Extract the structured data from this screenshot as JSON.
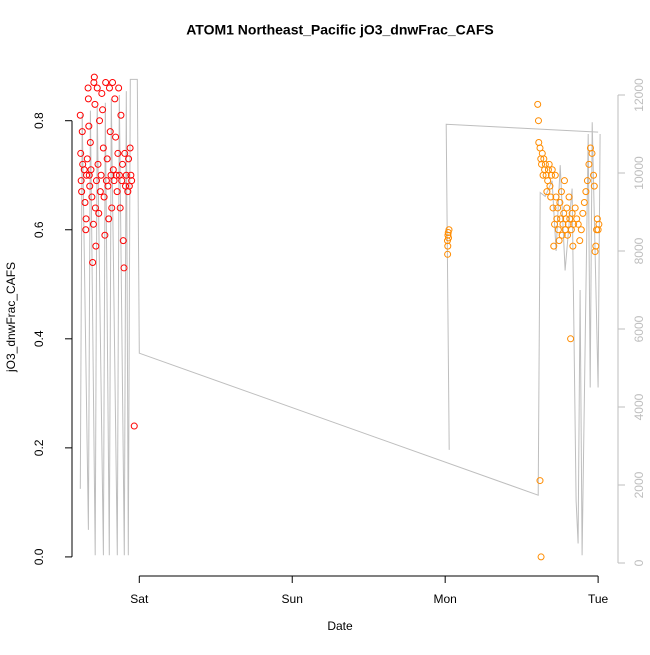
{
  "chart_data": {
    "type": "scatter",
    "title": "ATOM1 Northeast_Pacific jO3_dnwFrac_CAFS",
    "xlabel": "Date",
    "ylabel": "jO3_dnwFrac_CAFS",
    "xlim": [
      0.56,
      4.13
    ],
    "xticks": [
      {
        "value": 1,
        "label": "Sat"
      },
      {
        "value": 2,
        "label": "Sun"
      },
      {
        "value": 3,
        "label": "Mon"
      },
      {
        "value": 4,
        "label": "Tue"
      }
    ],
    "ylim": [
      -0.035,
      0.915
    ],
    "yticks": [
      {
        "value": 0,
        "label": "0.0"
      },
      0.2,
      0.4,
      0.6,
      0.8
    ],
    "y2lim": [
      -333,
      12949
    ],
    "y2ticks": [
      0,
      2000,
      4000,
      6000,
      8000,
      10000,
      12000
    ],
    "y2color": "#bebebe",
    "series": [
      {
        "color": "#ff0000",
        "type": "scatter",
        "x": [
          0.614,
          0.617,
          0.62,
          0.623,
          0.627,
          0.63,
          0.64,
          0.645,
          0.65,
          0.652,
          0.655,
          0.66,
          0.665,
          0.667,
          0.67,
          0.673,
          0.676,
          0.68,
          0.684,
          0.69,
          0.695,
          0.7,
          0.703,
          0.706,
          0.71,
          0.713,
          0.716,
          0.72,
          0.725,
          0.73,
          0.735,
          0.74,
          0.745,
          0.75,
          0.755,
          0.76,
          0.765,
          0.77,
          0.775,
          0.78,
          0.785,
          0.79,
          0.795,
          0.8,
          0.805,
          0.81,
          0.815,
          0.82,
          0.825,
          0.83,
          0.835,
          0.84,
          0.845,
          0.85,
          0.855,
          0.86,
          0.865,
          0.87,
          0.875,
          0.88,
          0.885,
          0.89,
          0.895,
          0.9,
          0.905,
          0.91,
          0.915,
          0.967,
          0.925,
          0.93,
          0.935,
          0.94,
          0.945,
          0.95
        ],
        "values": [
          0.81,
          0.74,
          0.69,
          0.67,
          0.78,
          0.72,
          0.71,
          0.65,
          0.6,
          0.62,
          0.7,
          0.73,
          0.86,
          0.84,
          0.79,
          0.7,
          0.68,
          0.76,
          0.71,
          0.66,
          0.54,
          0.61,
          0.87,
          0.88,
          0.83,
          0.64,
          0.57,
          0.69,
          0.86,
          0.72,
          0.63,
          0.8,
          0.67,
          0.7,
          0.85,
          0.82,
          0.75,
          0.66,
          0.59,
          0.87,
          0.69,
          0.73,
          0.68,
          0.62,
          0.86,
          0.78,
          0.7,
          0.64,
          0.87,
          0.71,
          0.69,
          0.84,
          0.77,
          0.7,
          0.67,
          0.74,
          0.86,
          0.7,
          0.64,
          0.81,
          0.69,
          0.72,
          0.58,
          0.53,
          0.74,
          0.68,
          0.7,
          0.24,
          0.67,
          0.73,
          0.68,
          0.75,
          0.7,
          0.69
        ]
      },
      {
        "color": "#ff8c00",
        "type": "scatter",
        "x": [
          3.015,
          3.018,
          3.02,
          3.022,
          3.025,
          3.017,
          3.016,
          3.605,
          3.61,
          3.612,
          3.62,
          3.627,
          3.62,
          3.625,
          3.63,
          3.635,
          3.64,
          3.645,
          3.65,
          3.655,
          3.66,
          3.665,
          3.67,
          3.675,
          3.68,
          3.685,
          3.69,
          3.695,
          3.7,
          3.705,
          3.71,
          3.715,
          3.72,
          3.725,
          3.73,
          3.735,
          3.74,
          3.745,
          3.75,
          3.755,
          3.76,
          3.765,
          3.77,
          3.775,
          3.78,
          3.785,
          3.79,
          3.795,
          3.8,
          3.805,
          3.81,
          3.815,
          3.82,
          3.825,
          3.83,
          3.835,
          3.84,
          3.85,
          3.86,
          3.87,
          3.88,
          3.89,
          3.9,
          3.91,
          3.92,
          3.93,
          3.94,
          3.95,
          3.96,
          3.97,
          3.975,
          3.98,
          3.985,
          3.99,
          3.995,
          4.0,
          4.005
        ],
        "values": [
          0.58,
          0.59,
          0.595,
          0.585,
          0.6,
          0.57,
          0.555,
          0.83,
          0.8,
          0.76,
          0.14,
          0.0,
          0.75,
          0.73,
          0.72,
          0.74,
          0.7,
          0.73,
          0.71,
          0.72,
          0.7,
          0.67,
          0.69,
          0.71,
          0.72,
          0.68,
          0.66,
          0.7,
          0.71,
          0.64,
          0.57,
          0.61,
          0.7,
          0.66,
          0.62,
          0.64,
          0.6,
          0.58,
          0.65,
          0.62,
          0.67,
          0.59,
          0.61,
          0.63,
          0.69,
          0.6,
          0.62,
          0.64,
          0.59,
          0.61,
          0.66,
          0.62,
          0.4,
          0.6,
          0.63,
          0.57,
          0.61,
          0.64,
          0.62,
          0.61,
          0.58,
          0.6,
          0.63,
          0.65,
          0.67,
          0.69,
          0.72,
          0.75,
          0.74,
          0.7,
          0.68,
          0.56,
          0.57,
          0.6,
          0.62,
          0.6,
          0.61
        ]
      },
      {
        "color": "#bebebe",
        "type": "line",
        "axis": "y2",
        "x": [
          0.614,
          0.627,
          0.667,
          0.68,
          0.712,
          0.725,
          0.765,
          0.778,
          0.804,
          0.817,
          0.856,
          0.869,
          0.902,
          0.915,
          0.928,
          0.941,
          0.987,
          1.0,
          3.608,
          3.621,
          3.654,
          3.699,
          3.725,
          3.752,
          3.784,
          3.83,
          3.856,
          3.869,
          3.882,
          3.895,
          3.935,
          3.948,
          3.961,
          4.0,
          4.013,
          3.0,
          3.026,
          3.007,
          4.0
        ],
        "values": [
          1900,
          11500,
          850,
          11600,
          200,
          11700,
          200,
          11800,
          200,
          11900,
          200,
          12000,
          200,
          12100,
          200,
          12400,
          12400,
          5380,
          1740,
          9500,
          9400,
          9800,
          8000,
          10200,
          7500,
          9600,
          1600,
          500,
          7000,
          200,
          11000,
          4500,
          11300,
          4500,
          11000,
          null,
          2900,
          11250,
          11050
        ]
      }
    ]
  }
}
